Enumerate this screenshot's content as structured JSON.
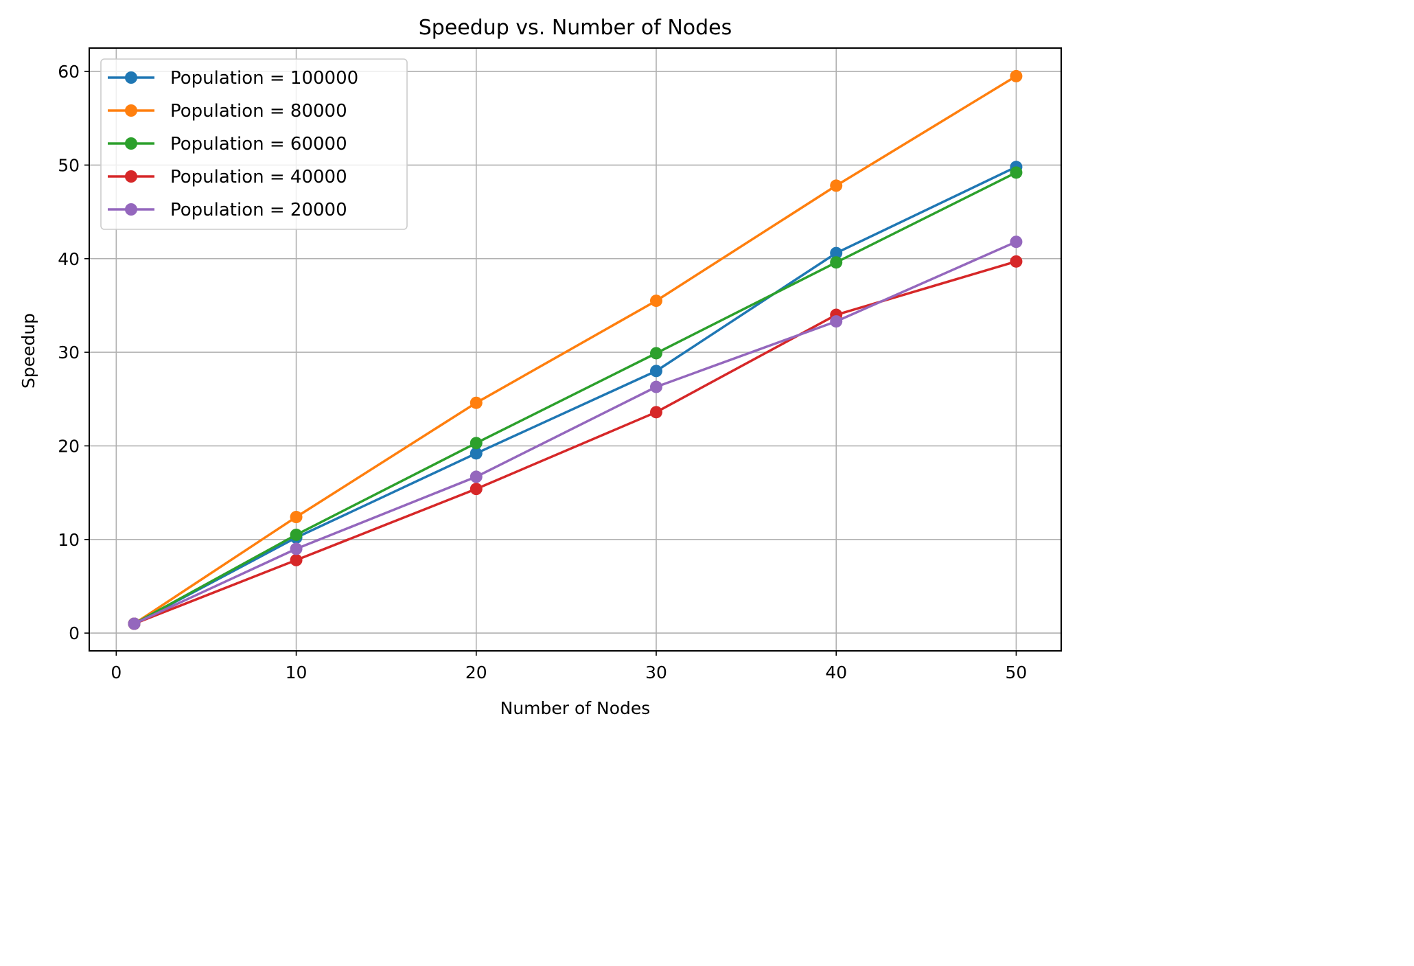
{
  "chart_data": {
    "type": "line",
    "title": "Speedup vs. Number of Nodes",
    "xlabel": "Number of Nodes",
    "ylabel": "Speedup",
    "xlim": [
      -1.5,
      52.5
    ],
    "ylim": [
      -1.9,
      62.5
    ],
    "xticks": [
      0,
      10,
      20,
      30,
      40,
      50
    ],
    "yticks": [
      0,
      10,
      20,
      30,
      40,
      50,
      60
    ],
    "grid": true,
    "legend_position": "upper-left",
    "x": [
      1,
      10,
      20,
      30,
      40,
      50
    ],
    "series": [
      {
        "name": "Population = 100000",
        "color": "#1f77b4",
        "values": [
          1,
          10.2,
          19.2,
          28.0,
          40.6,
          49.8
        ]
      },
      {
        "name": "Population = 80000",
        "color": "#ff7f0e",
        "values": [
          1,
          12.4,
          24.6,
          35.5,
          47.8,
          59.5
        ]
      },
      {
        "name": "Population = 60000",
        "color": "#2ca02c",
        "values": [
          1,
          10.5,
          20.3,
          29.9,
          39.6,
          49.2
        ]
      },
      {
        "name": "Population = 40000",
        "color": "#d62728",
        "values": [
          1,
          7.8,
          15.4,
          23.6,
          34.0,
          39.7
        ]
      },
      {
        "name": "Population = 20000",
        "color": "#9467bd",
        "values": [
          1,
          9.0,
          16.7,
          26.3,
          33.3,
          41.8
        ]
      }
    ]
  }
}
